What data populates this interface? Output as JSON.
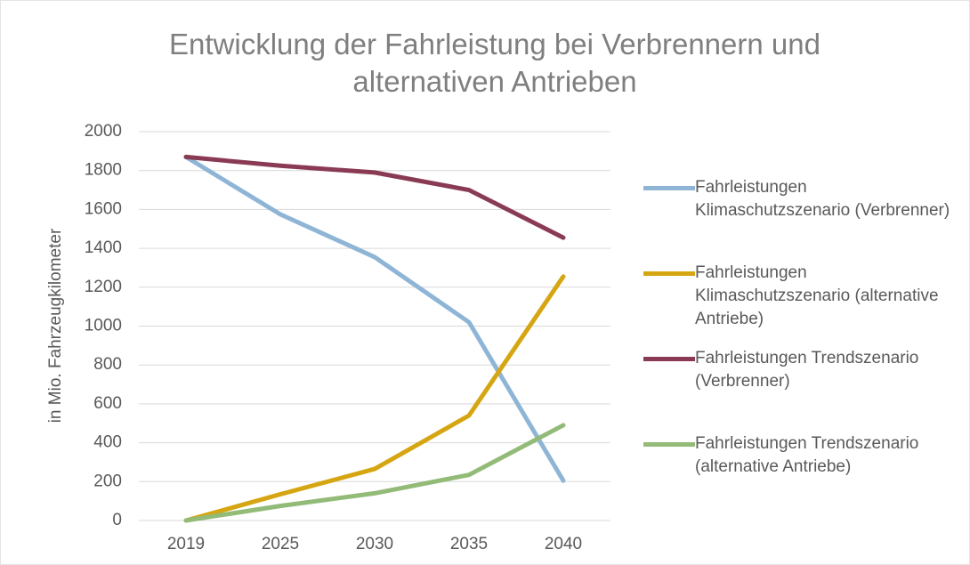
{
  "chart_data": {
    "type": "line",
    "title": "Entwicklung der Fahrleistung bei Verbrennern und alternativen Antrieben",
    "y_label": "in Mio. Fahrzeugkilometer",
    "categories": [
      "2019",
      "2025",
      "2030",
      "2035",
      "2040"
    ],
    "series": [
      {
        "name": "Fahrleistungen Klimaschutzszenario (Verbrenner)",
        "color": "#8fb5d6",
        "values": [
          1870,
          1575,
          1355,
          1020,
          205
        ]
      },
      {
        "name": "Fahrleistungen Klimaschutzszenario (alternative Antriebe)",
        "color": "#d6a512",
        "values": [
          0,
          135,
          265,
          540,
          1255
        ]
      },
      {
        "name": "Fahrleistungen Trendszenario (Verbrenner)",
        "color": "#8a3b54",
        "values": [
          1870,
          1825,
          1790,
          1700,
          1455
        ]
      },
      {
        "name": "Fahrleistungen Trendszenario (alternative Antriebe)",
        "color": "#93bb78",
        "values": [
          0,
          75,
          140,
          235,
          490
        ]
      }
    ],
    "ylim": [
      0,
      2000
    ],
    "yticks": [
      0,
      200,
      400,
      600,
      800,
      1000,
      1200,
      1400,
      1600,
      1800,
      2000
    ],
    "grid": true,
    "legend": "right"
  }
}
